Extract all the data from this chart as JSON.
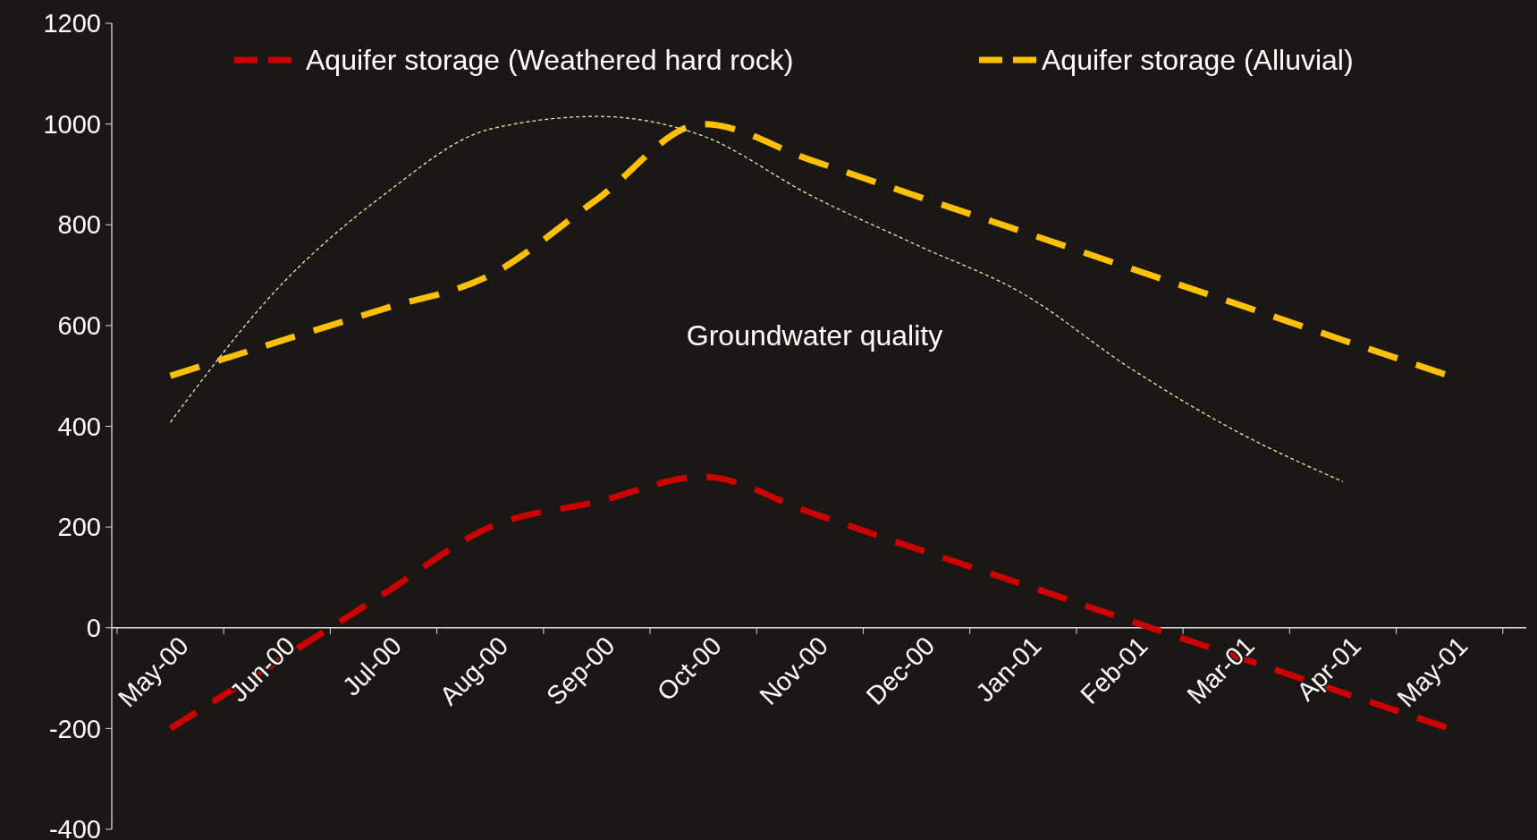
{
  "chart_data": {
    "type": "line",
    "categories": [
      "May-00",
      "Jun-00",
      "Jul-00",
      "Aug-00",
      "Sep-00",
      "Oct-00",
      "Nov-00",
      "Dec-00",
      "Jan-01",
      "Feb-01",
      "Mar-01",
      "Apr-01",
      "May-01"
    ],
    "series": [
      {
        "name": "Aquifer storage (Weathered hard rock)",
        "color": "#cc0000",
        "line_style": "dashed",
        "values": [
          -200,
          -67,
          67,
          200,
          250,
          300,
          229,
          157,
          86,
          14,
          -57,
          -129,
          -200
        ]
      },
      {
        "name": "Aquifer storage (Alluvial)",
        "color": "#ffc000",
        "line_style": "dashed",
        "values": [
          500,
          567,
          633,
          700,
          850,
          1000,
          929,
          857,
          786,
          714,
          643,
          571,
          500
        ]
      },
      {
        "color": "#f2e6b0",
        "line_style": "dotted",
        "values": [
          408,
          672,
          859,
          990,
          1015,
          976,
          859,
          760,
          663,
          516,
          390,
          290,
          null
        ]
      }
    ],
    "ylim": [
      -400,
      1200
    ],
    "yticks": [
      -400,
      -200,
      0,
      200,
      400,
      600,
      800,
      1000,
      1200
    ],
    "grid": false,
    "legend": "top",
    "marker": "none",
    "annotations": [
      "Groundwater quality"
    ]
  }
}
